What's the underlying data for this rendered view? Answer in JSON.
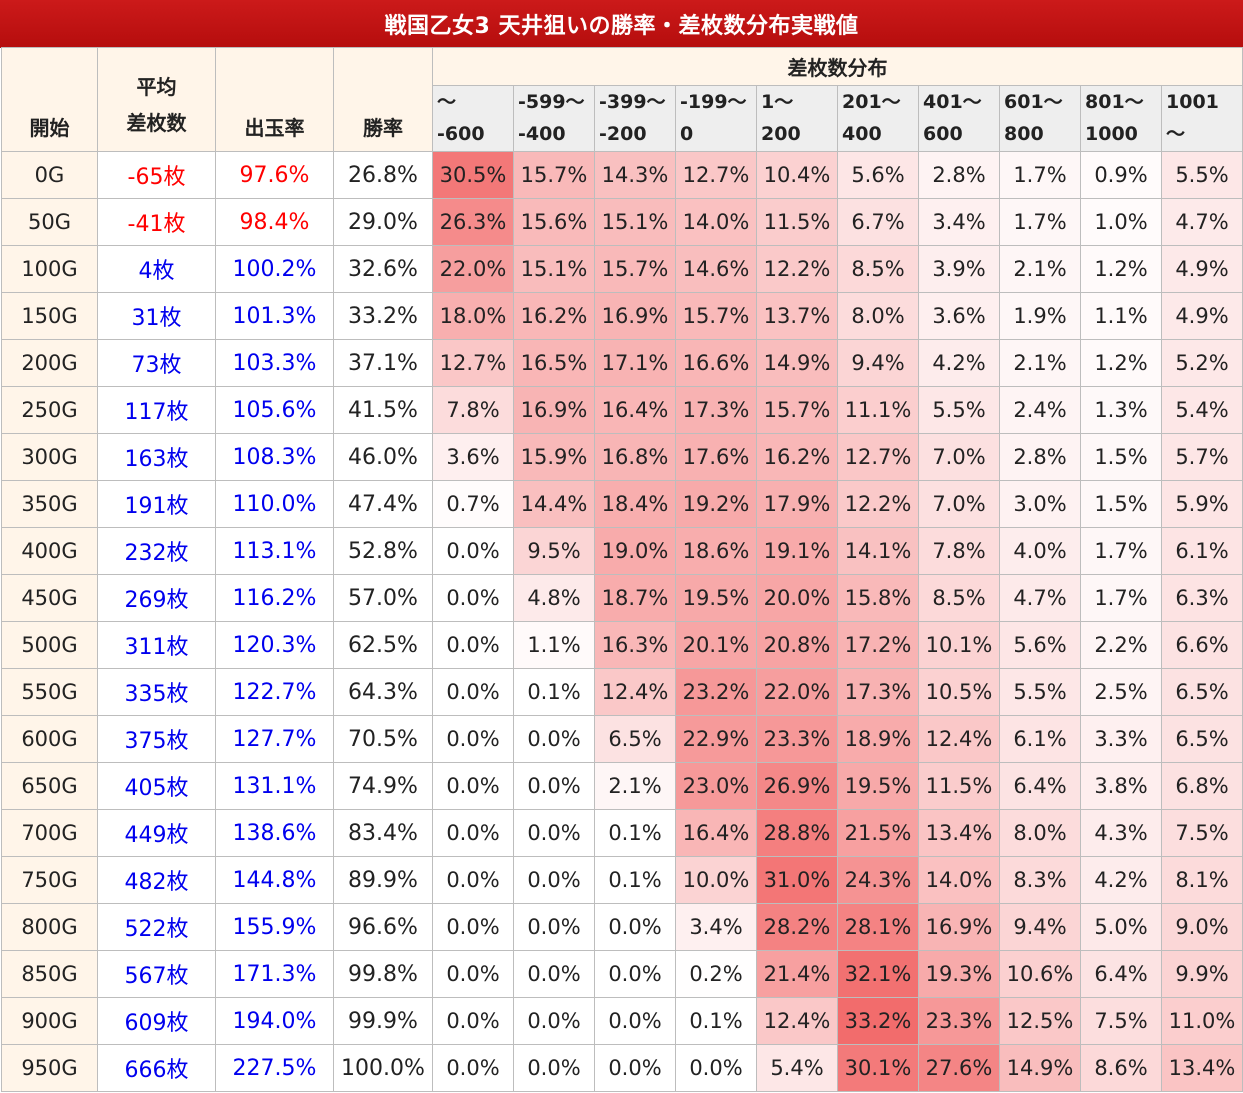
{
  "title": "戦国乙女3 天井狙いの勝率・差枚数分布実戦値",
  "headers": {
    "start": "開始",
    "avg_line1": "平均",
    "avg_line2": "差枚数",
    "payout": "出玉率",
    "win": "勝率",
    "dist": "差枚数分布"
  },
  "bins": [
    {
      "line1": "～",
      "line2": "-600"
    },
    {
      "line1": "-599～",
      "line2": "-400"
    },
    {
      "line1": "-399～",
      "line2": "-200"
    },
    {
      "line1": "-199～",
      "line2": "0"
    },
    {
      "line1": "1～",
      "line2": "200"
    },
    {
      "line1": "201～",
      "line2": "400"
    },
    {
      "line1": "401～",
      "line2": "600"
    },
    {
      "line1": "601～",
      "line2": "800"
    },
    {
      "line1": "801～",
      "line2": "1000"
    },
    {
      "line1": "1001",
      "line2": "～"
    }
  ],
  "colors": {
    "title_bg": "#c41313",
    "header_bg": "#fff5e9",
    "bin_header_bg": "#eeeeee",
    "negative_text": "#ff0000",
    "positive_text": "#0000ee",
    "heat_max": "#f26c6c"
  },
  "rows": [
    {
      "start": "0G",
      "avg": "-65枚",
      "payout": "97.6%",
      "win": "26.8%",
      "dist": [
        "30.5%",
        "15.7%",
        "14.3%",
        "12.7%",
        "10.4%",
        "5.6%",
        "2.8%",
        "1.7%",
        "0.9%",
        "5.5%"
      ]
    },
    {
      "start": "50G",
      "avg": "-41枚",
      "payout": "98.4%",
      "win": "29.0%",
      "dist": [
        "26.3%",
        "15.6%",
        "15.1%",
        "14.0%",
        "11.5%",
        "6.7%",
        "3.4%",
        "1.7%",
        "1.0%",
        "4.7%"
      ]
    },
    {
      "start": "100G",
      "avg": "4枚",
      "payout": "100.2%",
      "win": "32.6%",
      "dist": [
        "22.0%",
        "15.1%",
        "15.7%",
        "14.6%",
        "12.2%",
        "8.5%",
        "3.9%",
        "2.1%",
        "1.2%",
        "4.9%"
      ]
    },
    {
      "start": "150G",
      "avg": "31枚",
      "payout": "101.3%",
      "win": "33.2%",
      "dist": [
        "18.0%",
        "16.2%",
        "16.9%",
        "15.7%",
        "13.7%",
        "8.0%",
        "3.6%",
        "1.9%",
        "1.1%",
        "4.9%"
      ]
    },
    {
      "start": "200G",
      "avg": "73枚",
      "payout": "103.3%",
      "win": "37.1%",
      "dist": [
        "12.7%",
        "16.5%",
        "17.1%",
        "16.6%",
        "14.9%",
        "9.4%",
        "4.2%",
        "2.1%",
        "1.2%",
        "5.2%"
      ]
    },
    {
      "start": "250G",
      "avg": "117枚",
      "payout": "105.6%",
      "win": "41.5%",
      "dist": [
        "7.8%",
        "16.9%",
        "16.4%",
        "17.3%",
        "15.7%",
        "11.1%",
        "5.5%",
        "2.4%",
        "1.3%",
        "5.4%"
      ]
    },
    {
      "start": "300G",
      "avg": "163枚",
      "payout": "108.3%",
      "win": "46.0%",
      "dist": [
        "3.6%",
        "15.9%",
        "16.8%",
        "17.6%",
        "16.2%",
        "12.7%",
        "7.0%",
        "2.8%",
        "1.5%",
        "5.7%"
      ]
    },
    {
      "start": "350G",
      "avg": "191枚",
      "payout": "110.0%",
      "win": "47.4%",
      "dist": [
        "0.7%",
        "14.4%",
        "18.4%",
        "19.2%",
        "17.9%",
        "12.2%",
        "7.0%",
        "3.0%",
        "1.5%",
        "5.9%"
      ]
    },
    {
      "start": "400G",
      "avg": "232枚",
      "payout": "113.1%",
      "win": "52.8%",
      "dist": [
        "0.0%",
        "9.5%",
        "19.0%",
        "18.6%",
        "19.1%",
        "14.1%",
        "7.8%",
        "4.0%",
        "1.7%",
        "6.1%"
      ]
    },
    {
      "start": "450G",
      "avg": "269枚",
      "payout": "116.2%",
      "win": "57.0%",
      "dist": [
        "0.0%",
        "4.8%",
        "18.7%",
        "19.5%",
        "20.0%",
        "15.8%",
        "8.5%",
        "4.7%",
        "1.7%",
        "6.3%"
      ]
    },
    {
      "start": "500G",
      "avg": "311枚",
      "payout": "120.3%",
      "win": "62.5%",
      "dist": [
        "0.0%",
        "1.1%",
        "16.3%",
        "20.1%",
        "20.8%",
        "17.2%",
        "10.1%",
        "5.6%",
        "2.2%",
        "6.6%"
      ]
    },
    {
      "start": "550G",
      "avg": "335枚",
      "payout": "122.7%",
      "win": "64.3%",
      "dist": [
        "0.0%",
        "0.1%",
        "12.4%",
        "23.2%",
        "22.0%",
        "17.3%",
        "10.5%",
        "5.5%",
        "2.5%",
        "6.5%"
      ]
    },
    {
      "start": "600G",
      "avg": "375枚",
      "payout": "127.7%",
      "win": "70.5%",
      "dist": [
        "0.0%",
        "0.0%",
        "6.5%",
        "22.9%",
        "23.3%",
        "18.9%",
        "12.4%",
        "6.1%",
        "3.3%",
        "6.5%"
      ]
    },
    {
      "start": "650G",
      "avg": "405枚",
      "payout": "131.1%",
      "win": "74.9%",
      "dist": [
        "0.0%",
        "0.0%",
        "2.1%",
        "23.0%",
        "26.9%",
        "19.5%",
        "11.5%",
        "6.4%",
        "3.8%",
        "6.8%"
      ]
    },
    {
      "start": "700G",
      "avg": "449枚",
      "payout": "138.6%",
      "win": "83.4%",
      "dist": [
        "0.0%",
        "0.0%",
        "0.1%",
        "16.4%",
        "28.8%",
        "21.5%",
        "13.4%",
        "8.0%",
        "4.3%",
        "7.5%"
      ]
    },
    {
      "start": "750G",
      "avg": "482枚",
      "payout": "144.8%",
      "win": "89.9%",
      "dist": [
        "0.0%",
        "0.0%",
        "0.1%",
        "10.0%",
        "31.0%",
        "24.3%",
        "14.0%",
        "8.3%",
        "4.2%",
        "8.1%"
      ]
    },
    {
      "start": "800G",
      "avg": "522枚",
      "payout": "155.9%",
      "win": "96.6%",
      "dist": [
        "0.0%",
        "0.0%",
        "0.0%",
        "3.4%",
        "28.2%",
        "28.1%",
        "16.9%",
        "9.4%",
        "5.0%",
        "9.0%"
      ]
    },
    {
      "start": "850G",
      "avg": "567枚",
      "payout": "171.3%",
      "win": "99.8%",
      "dist": [
        "0.0%",
        "0.0%",
        "0.0%",
        "0.2%",
        "21.4%",
        "32.1%",
        "19.3%",
        "10.6%",
        "6.4%",
        "9.9%"
      ]
    },
    {
      "start": "900G",
      "avg": "609枚",
      "payout": "194.0%",
      "win": "99.9%",
      "dist": [
        "0.0%",
        "0.0%",
        "0.0%",
        "0.1%",
        "12.4%",
        "33.2%",
        "23.3%",
        "12.5%",
        "7.5%",
        "11.0%"
      ]
    },
    {
      "start": "950G",
      "avg": "666枚",
      "payout": "227.5%",
      "win": "100.0%",
      "dist": [
        "0.0%",
        "0.0%",
        "0.0%",
        "0.0%",
        "5.4%",
        "30.1%",
        "27.6%",
        "14.9%",
        "8.6%",
        "13.4%"
      ]
    }
  ]
}
